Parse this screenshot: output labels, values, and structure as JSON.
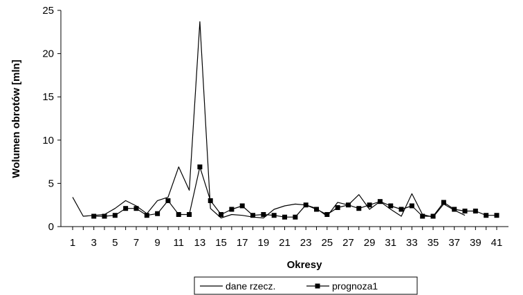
{
  "chart_data": {
    "type": "line",
    "title": "",
    "xlabel": "Okresy",
    "ylabel": "Wolumen obrotów [mln]",
    "ylim": [
      0,
      25
    ],
    "yticks": [
      0,
      5,
      10,
      15,
      20,
      25
    ],
    "xlim": [
      1,
      41
    ],
    "xticks": [
      1,
      3,
      5,
      7,
      9,
      11,
      13,
      15,
      17,
      19,
      21,
      23,
      25,
      27,
      29,
      31,
      33,
      35,
      37,
      39,
      41
    ],
    "grid": false,
    "legend_position": "bottom",
    "series": [
      {
        "name": "dane rzecz.",
        "color": "#000000",
        "marker": "none",
        "x": [
          1,
          2,
          3,
          4,
          5,
          6,
          7,
          8,
          9,
          10,
          11,
          12,
          13,
          14,
          15,
          16,
          17,
          18,
          19,
          20,
          21,
          22,
          23,
          24,
          25,
          26,
          27,
          28,
          29,
          30,
          31,
          32,
          33,
          34,
          35,
          36,
          37,
          38
        ],
        "values": [
          3.4,
          1.2,
          1.3,
          1.4,
          2.1,
          3.0,
          2.4,
          1.5,
          3.0,
          3.4,
          6.9,
          4.2,
          23.7,
          2.1,
          1.0,
          1.4,
          1.3,
          1.1,
          1.0,
          2.0,
          2.4,
          2.6,
          2.5,
          2.1,
          1.2,
          2.8,
          2.5,
          3.7,
          2.0,
          2.9,
          2.0,
          1.2,
          3.8,
          1.4,
          1.1,
          2.6,
          1.9,
          1.3
        ]
      },
      {
        "name": "prognoza1",
        "color": "#000000",
        "marker": "square",
        "x": [
          3,
          4,
          5,
          6,
          7,
          8,
          9,
          10,
          11,
          12,
          13,
          14,
          15,
          16,
          17,
          18,
          19,
          20,
          21,
          22,
          23,
          24,
          25,
          26,
          27,
          28,
          29,
          30,
          31,
          32,
          33,
          34,
          35,
          36,
          37,
          38,
          39,
          40,
          41
        ],
        "values": [
          1.2,
          1.2,
          1.3,
          2.1,
          2.1,
          1.3,
          1.5,
          3.0,
          1.4,
          1.4,
          6.9,
          3.0,
          1.4,
          2.0,
          2.4,
          1.3,
          1.4,
          1.3,
          1.1,
          1.1,
          2.5,
          2.0,
          1.4,
          2.2,
          2.5,
          2.1,
          2.5,
          2.9,
          2.4,
          2.0,
          2.4,
          1.2,
          1.2,
          2.8,
          2.0,
          1.8,
          1.8,
          1.3,
          1.3
        ]
      }
    ]
  }
}
